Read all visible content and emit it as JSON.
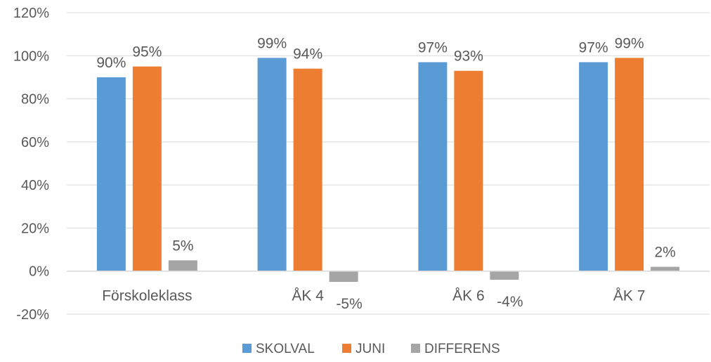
{
  "chart_data": {
    "type": "bar",
    "categories": [
      "Förskoleklass",
      "ÅK 4",
      "ÅK 6",
      "ÅK 7"
    ],
    "series": [
      {
        "name": "SKOLVAL",
        "values": [
          90,
          99,
          97,
          97
        ],
        "labels": [
          "90%",
          "99%",
          "97%",
          "97%"
        ],
        "color": "#5B9BD5"
      },
      {
        "name": "JUNI",
        "values": [
          95,
          94,
          93,
          99
        ],
        "labels": [
          "95%",
          "94%",
          "93%",
          "99%"
        ],
        "color": "#ED7D31"
      },
      {
        "name": "DIFFERENS",
        "values": [
          5,
          -5,
          -4,
          2
        ],
        "labels": [
          "5%",
          "-5%",
          "-4%",
          "2%"
        ],
        "color": "#A5A5A5"
      }
    ],
    "y_ticks": [
      120,
      100,
      80,
      60,
      40,
      20,
      0,
      -20
    ],
    "y_tick_labels": [
      "120%",
      "100%",
      "80%",
      "60%",
      "40%",
      "20%",
      "0%",
      "-20%"
    ],
    "ylim": [
      -20,
      120
    ],
    "grid": true,
    "legend_position": "bottom"
  }
}
